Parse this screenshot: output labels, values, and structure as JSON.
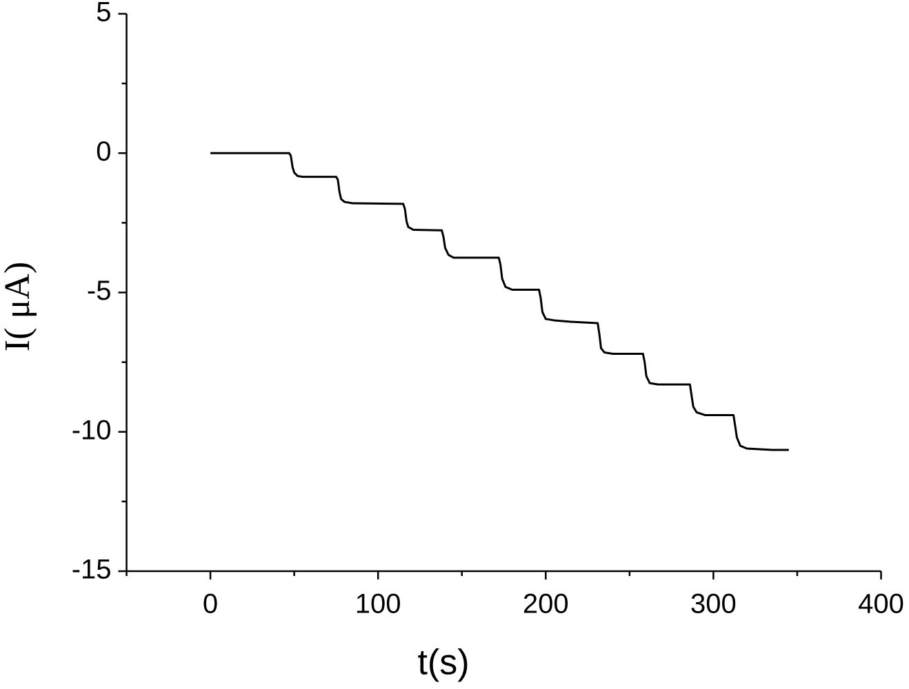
{
  "chart_data": {
    "type": "line",
    "x_label": "t(s)",
    "y_label": "I( μA)",
    "xlim": [
      -50,
      400
    ],
    "xticks": [
      0,
      100,
      200,
      300,
      400
    ],
    "xminorticks": [
      -50,
      50,
      150,
      250,
      350
    ],
    "ylim": [
      -15,
      5
    ],
    "yticks": [
      -15,
      -10,
      -5,
      0,
      5
    ],
    "yminorticks": [
      -12.5,
      -7.5,
      -2.5,
      2.5
    ],
    "grid": false,
    "series": [
      {
        "color": "#000000",
        "x": [
          0,
          20,
          47,
          48,
          49,
          50,
          52,
          55,
          75,
          76,
          77,
          78,
          80,
          85,
          115,
          116,
          117,
          118,
          121,
          138,
          139,
          140,
          142,
          145,
          172,
          173,
          174,
          176,
          180,
          196,
          197,
          198,
          200,
          205,
          215,
          231,
          232,
          233,
          235,
          240,
          258,
          259,
          260,
          262,
          267,
          286,
          287,
          288,
          290,
          295,
          312,
          313,
          314,
          316,
          320,
          335,
          345
        ],
        "values": [
          0,
          0,
          0,
          -0.1,
          -0.5,
          -0.7,
          -0.82,
          -0.85,
          -0.85,
          -0.95,
          -1.4,
          -1.65,
          -1.75,
          -1.8,
          -1.82,
          -2.0,
          -2.45,
          -2.65,
          -2.75,
          -2.77,
          -3.0,
          -3.4,
          -3.65,
          -3.75,
          -3.75,
          -4.0,
          -4.5,
          -4.8,
          -4.9,
          -4.9,
          -5.2,
          -5.7,
          -5.95,
          -6.0,
          -6.05,
          -6.1,
          -6.5,
          -7.0,
          -7.15,
          -7.2,
          -7.2,
          -7.5,
          -8.0,
          -8.25,
          -8.3,
          -8.3,
          -8.7,
          -9.1,
          -9.3,
          -9.4,
          -9.4,
          -9.8,
          -10.2,
          -10.5,
          -10.6,
          -10.65,
          -10.65
        ]
      }
    ]
  }
}
